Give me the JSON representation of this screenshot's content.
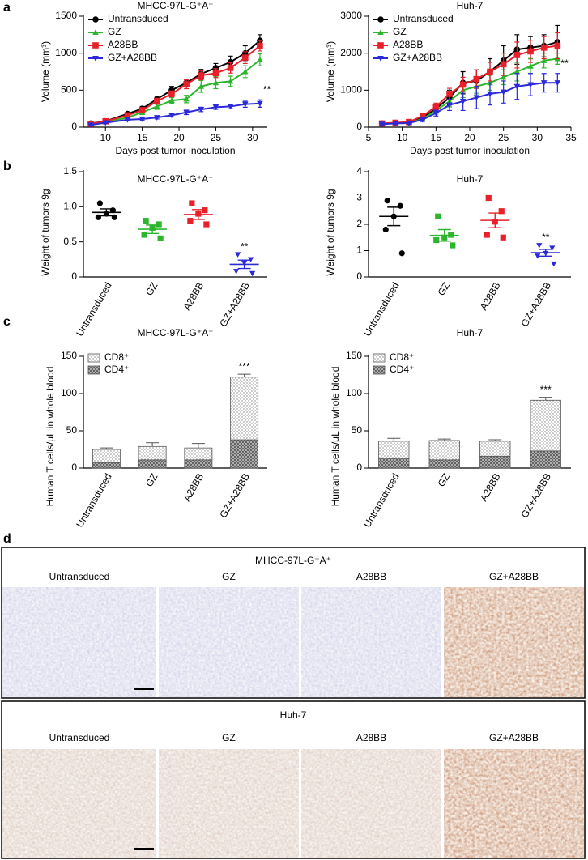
{
  "panel_labels": [
    "a",
    "b",
    "c",
    "d"
  ],
  "chart_data": [
    {
      "type": "line",
      "title": "MHCC-97L-G⁺A⁺",
      "x_label": "Days post tumor inoculation",
      "y_label": "Volume (mm³)",
      "x": [
        8,
        10,
        13,
        15,
        17,
        19,
        21,
        23,
        25,
        27,
        29,
        31
      ],
      "xlim": [
        7,
        32
      ],
      "xticks": [
        10,
        15,
        20,
        25,
        30
      ],
      "ylim": [
        0,
        1500
      ],
      "yticks": [
        0,
        500,
        1000,
        1500
      ],
      "legend": "top-left",
      "series": [
        {
          "name": "Untransduced",
          "color": "#000000",
          "marker": "circle",
          "values": [
            50,
            80,
            180,
            250,
            380,
            500,
            600,
            720,
            800,
            880,
            1000,
            1170
          ],
          "errors": [
            10,
            15,
            20,
            30,
            40,
            50,
            50,
            60,
            60,
            80,
            100,
            80
          ]
        },
        {
          "name": "GZ",
          "color": "#2db52d",
          "marker": "triangle-up",
          "values": [
            40,
            70,
            130,
            200,
            280,
            360,
            380,
            550,
            600,
            620,
            750,
            910
          ],
          "errors": [
            10,
            10,
            20,
            30,
            40,
            40,
            50,
            80,
            80,
            70,
            80,
            80
          ]
        },
        {
          "name": "A28BB",
          "color": "#e8202a",
          "marker": "square",
          "values": [
            45,
            80,
            160,
            230,
            350,
            450,
            580,
            700,
            730,
            800,
            940,
            1100
          ],
          "errors": [
            10,
            15,
            20,
            30,
            40,
            40,
            60,
            60,
            60,
            70,
            80,
            70
          ]
        },
        {
          "name": "GZ+A28BB",
          "color": "#2a2ad8",
          "marker": "triangle-down",
          "values": [
            30,
            60,
            100,
            110,
            130,
            160,
            200,
            240,
            270,
            280,
            310,
            320
          ],
          "errors": [
            10,
            10,
            10,
            20,
            20,
            20,
            30,
            30,
            30,
            30,
            40,
            50
          ]
        }
      ],
      "annotation": "**",
      "annotation_series": "GZ+A28BB"
    },
    {
      "type": "line",
      "title": "Huh-7",
      "x_label": "Days post tumor inoculation",
      "y_label": "Volume (mm³)",
      "x": [
        7,
        9,
        11,
        13,
        15,
        17,
        19,
        21,
        23,
        25,
        27,
        29,
        31,
        33
      ],
      "xlim": [
        5,
        35
      ],
      "xticks": [
        5,
        10,
        15,
        20,
        25,
        30,
        35
      ],
      "ylim": [
        0,
        3000
      ],
      "yticks": [
        0,
        1000,
        2000,
        3000
      ],
      "legend": "top-left",
      "series": [
        {
          "name": "Untransduced",
          "color": "#000000",
          "marker": "circle",
          "values": [
            100,
            110,
            130,
            250,
            500,
            800,
            1200,
            1250,
            1500,
            1800,
            2100,
            2150,
            2200,
            2300
          ],
          "errors": [
            30,
            30,
            40,
            60,
            100,
            200,
            300,
            300,
            350,
            400,
            400,
            300,
            300,
            450
          ]
        },
        {
          "name": "GZ",
          "color": "#2db52d",
          "marker": "triangle-up",
          "values": [
            90,
            100,
            120,
            220,
            450,
            700,
            1000,
            1100,
            1200,
            1350,
            1500,
            1650,
            1800,
            1850
          ],
          "errors": [
            20,
            30,
            40,
            60,
            100,
            150,
            200,
            200,
            200,
            200,
            250,
            200,
            200,
            150
          ]
        },
        {
          "name": "A28BB",
          "color": "#e8202a",
          "marker": "square",
          "values": [
            100,
            120,
            140,
            300,
            550,
            900,
            1150,
            1300,
            1500,
            1700,
            1950,
            2050,
            2150,
            2200
          ],
          "errors": [
            30,
            30,
            40,
            60,
            100,
            150,
            200,
            250,
            250,
            300,
            350,
            300,
            300,
            350
          ]
        },
        {
          "name": "GZ+A28BB",
          "color": "#2a2ad8",
          "marker": "triangle-down",
          "values": [
            80,
            100,
            110,
            200,
            380,
            600,
            700,
            800,
            900,
            950,
            1100,
            1150,
            1200,
            1200
          ],
          "errors": [
            20,
            20,
            30,
            50,
            80,
            150,
            250,
            300,
            300,
            300,
            350,
            300,
            250,
            250
          ]
        }
      ],
      "annotation": "**",
      "annotation_series": "GZ+A28BB"
    },
    {
      "type": "dot",
      "title": "MHCC-97L-G⁺A⁺",
      "y_label": "Weight of tumors 9g",
      "categories": [
        "Untransduced",
        "GZ",
        "A28BB",
        "GZ+A28BB"
      ],
      "colors": [
        "#000000",
        "#2db52d",
        "#e8202a",
        "#2a2ad8"
      ],
      "markers": [
        "circle",
        "square",
        "square",
        "triangle-down"
      ],
      "points": [
        [
          1.05,
          0.95,
          0.9,
          0.85,
          0.85
        ],
        [
          0.8,
          0.75,
          0.7,
          0.6,
          0.55
        ],
        [
          1.05,
          0.95,
          0.9,
          0.8,
          0.75
        ],
        [
          0.32,
          0.25,
          0.2,
          0.08,
          0.05
        ]
      ],
      "means": [
        0.92,
        0.68,
        0.89,
        0.18
      ],
      "sems": [
        0.05,
        0.06,
        0.07,
        0.06
      ],
      "ylim": [
        0,
        1.5
      ],
      "yticks": [
        0,
        0.5,
        {
          "value": 1,
          "label": "1.0"
        },
        1.5
      ],
      "annotation": "**",
      "annotation_category": "GZ+A28BB"
    },
    {
      "type": "dot",
      "title": "Huh-7",
      "y_label": "Weight of tumors 9g",
      "categories": [
        "Untransduced",
        "GZ",
        "A28BB",
        "GZ+A28BB"
      ],
      "colors": [
        "#000000",
        "#2db52d",
        "#e8202a",
        "#2a2ad8"
      ],
      "markers": [
        "circle",
        "square",
        "square",
        "triangle-down"
      ],
      "points": [
        [
          2.9,
          2.7,
          2.3,
          1.8,
          0.9
        ],
        [
          2.3,
          1.6,
          1.5,
          1.4,
          1.2
        ],
        [
          3.0,
          2.5,
          2.1,
          1.6,
          1.5
        ],
        [
          1.2,
          1.1,
          0.9,
          0.8,
          0.5
        ]
      ],
      "means": [
        2.3,
        1.58,
        2.15,
        0.92
      ],
      "sems": [
        0.35,
        0.22,
        0.28,
        0.13
      ],
      "ylim": [
        0,
        4
      ],
      "yticks": [
        0,
        1,
        2,
        3,
        4
      ],
      "annotation": "**",
      "annotation_category": "GZ+A28BB"
    },
    {
      "type": "stackedbar",
      "title": "MHCC-97L-G⁺A⁺",
      "y_label": "Human T cells/μL in whole blood",
      "categories": [
        "Untransduced",
        "GZ",
        "A28BB",
        "GZ+A28BB"
      ],
      "ylim": [
        0,
        150
      ],
      "yticks": [
        0,
        50,
        100,
        150
      ],
      "legend": "top-left",
      "series": [
        {
          "name": "CD4⁺",
          "pattern": "crosshatch",
          "values": [
            7,
            11,
            11,
            38
          ],
          "errors": [
            3,
            2,
            2,
            10
          ]
        },
        {
          "name": "CD8⁺",
          "pattern": "dots",
          "values": [
            18,
            18,
            16,
            84
          ],
          "errors": [
            2,
            5,
            6,
            4
          ]
        }
      ],
      "annotation": "***",
      "annotation_category": "GZ+A28BB"
    },
    {
      "type": "stackedbar",
      "title": "Huh-7",
      "y_label": "Human T cells/μL in whole blood",
      "categories": [
        "Untransduced",
        "GZ",
        "A28BB",
        "GZ+A28BB"
      ],
      "ylim": [
        0,
        150
      ],
      "yticks": [
        0,
        50,
        100,
        150
      ],
      "legend": "top-left",
      "series": [
        {
          "name": "CD4⁺",
          "pattern": "crosshatch",
          "values": [
            13,
            11,
            16,
            23
          ],
          "errors": [
            3,
            2,
            2,
            4
          ]
        },
        {
          "name": "CD8⁺",
          "pattern": "dots",
          "values": [
            23,
            26,
            20,
            68
          ],
          "errors": [
            4,
            2,
            2,
            4
          ]
        }
      ],
      "annotation": "***",
      "annotation_category": "GZ+A28BB"
    }
  ],
  "histology": {
    "panels": [
      {
        "title": "MHCC-97L-G⁺A⁺",
        "images": [
          "Untransduced",
          "GZ",
          "A28BB",
          "GZ+A28BB"
        ]
      },
      {
        "title": "Huh-7",
        "images": [
          "Untransduced",
          "GZ",
          "A28BB",
          "GZ+A28BB"
        ]
      }
    ]
  }
}
